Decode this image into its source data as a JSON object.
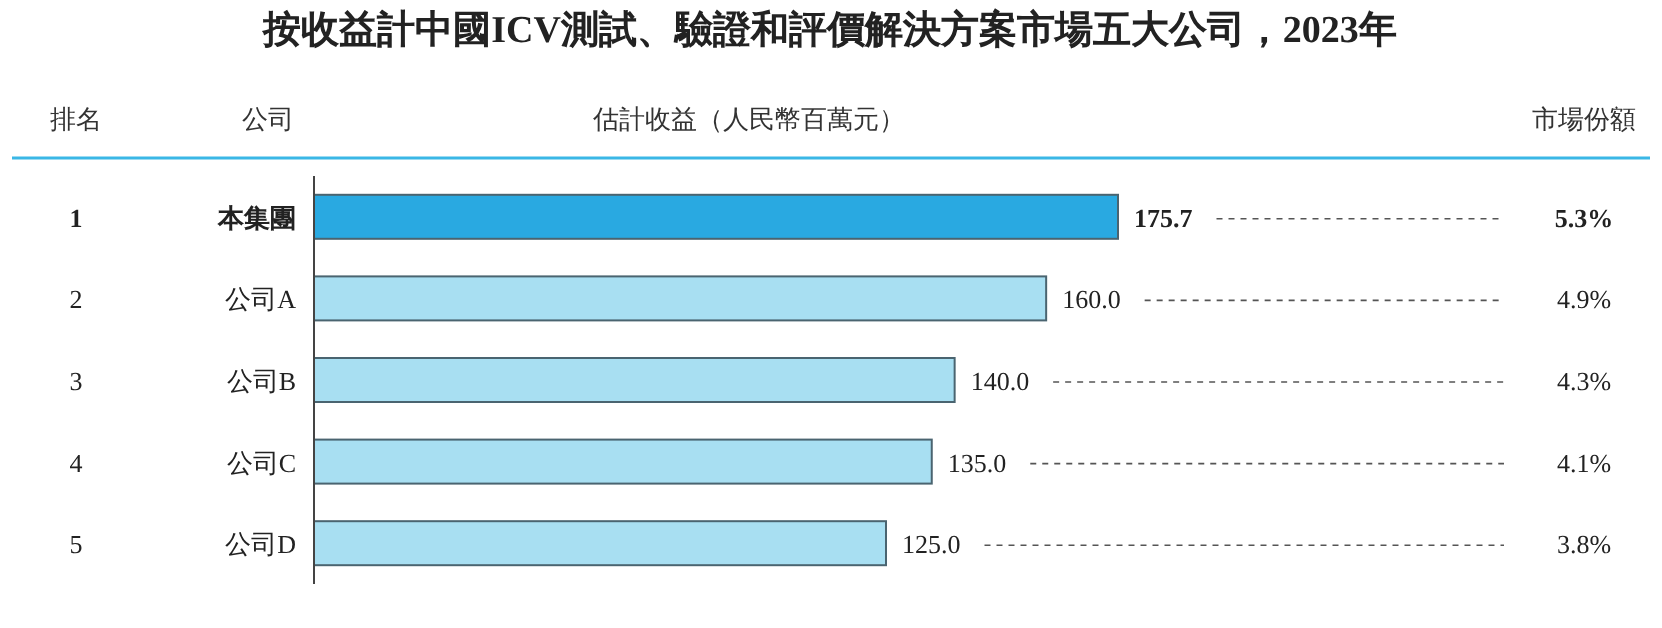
{
  "chart_data": {
    "type": "bar",
    "orientation": "horizontal",
    "title": "按收益計中國ICV測試、驗證和評價解決方案市場五大公司，2023年",
    "xlabel": "估計收益（人民幣百萬元）",
    "ylabel": "公司",
    "categories": [
      "本集團",
      "公司A",
      "公司B",
      "公司C",
      "公司D"
    ],
    "values": [
      175.7,
      160.0,
      140.0,
      135.0,
      125.0
    ],
    "value_labels": [
      "175.7",
      "160.0",
      "140.0",
      "135.0",
      "125.0"
    ],
    "colors": [
      "#29a9e1",
      "#a8dff2",
      "#a8dff2",
      "#a8dff2",
      "#a8dff2"
    ],
    "annotations": [
      "排名",
      "市場份額",
      "1",
      "2",
      "3",
      "4",
      "5",
      "5.3%",
      "4.9%",
      "4.3%",
      "4.1%",
      "3.8%"
    ]
  }
}
